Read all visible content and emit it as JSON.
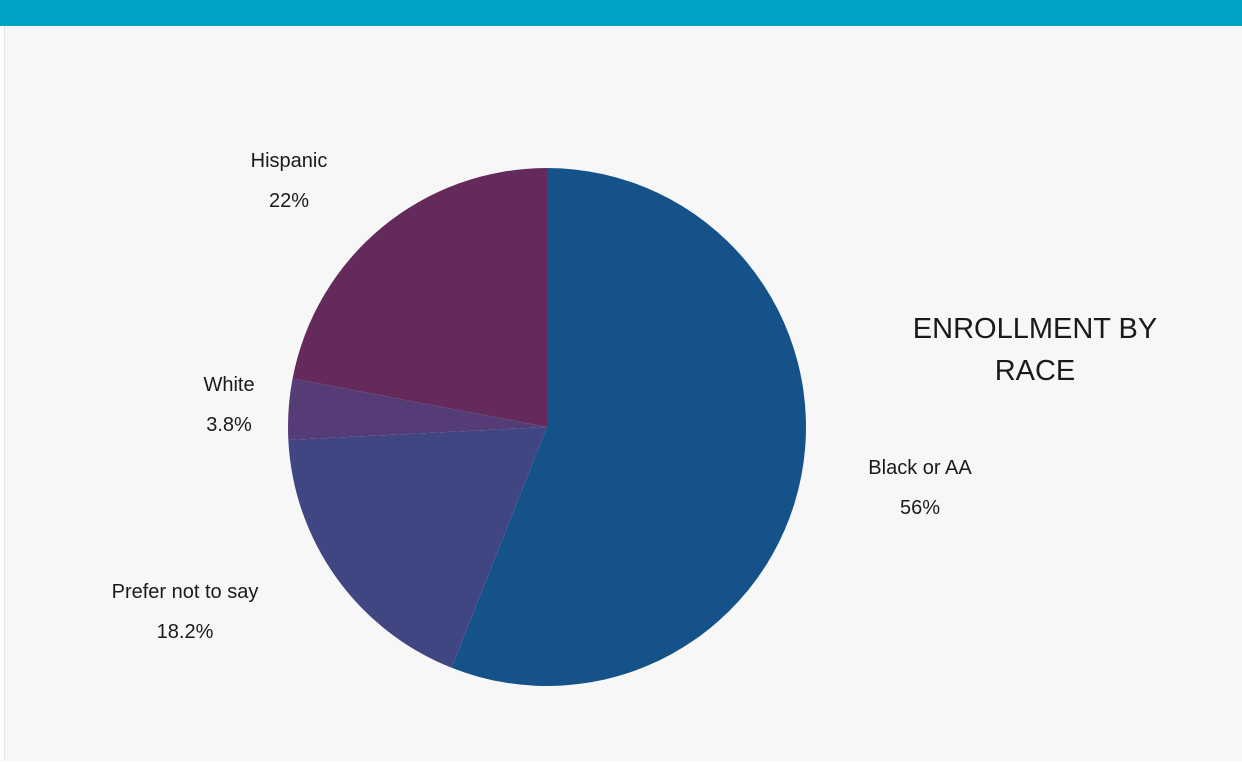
{
  "colors": {
    "top_bar": "#00a3c6",
    "background": "#f7f7f7"
  },
  "chart_data": {
    "type": "pie",
    "title_lines": [
      "ENROLLMENT BY",
      "RACE"
    ],
    "start": "12 o'clock",
    "direction": "clockwise",
    "slices": [
      {
        "label": "Black or AA",
        "value": 56,
        "display": "56%",
        "color": "#16528a"
      },
      {
        "label": "Prefer not to say",
        "value": 18.2,
        "display": "18.2%",
        "color": "#3f4682"
      },
      {
        "label": "White",
        "value": 3.8,
        "display": "3.8%",
        "color": "#553c77"
      },
      {
        "label": "Hispanic",
        "value": 22,
        "display": "22%",
        "color": "#642a5c"
      }
    ]
  }
}
